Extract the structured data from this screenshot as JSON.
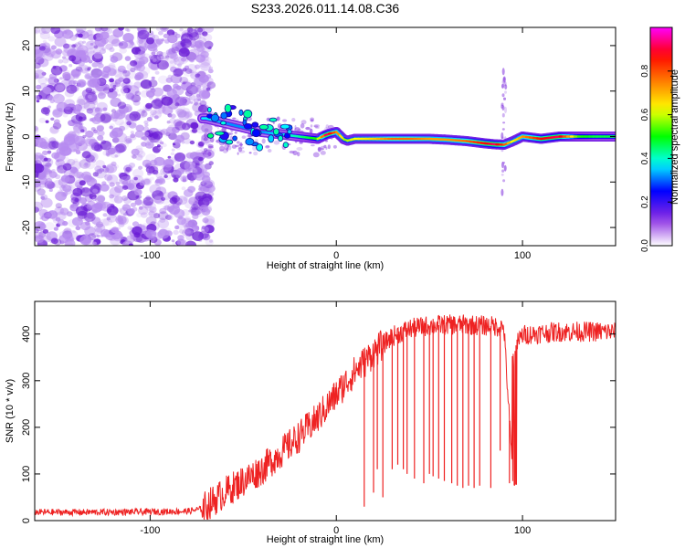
{
  "title": "S233.2026.011.14.08.C36",
  "chart_data": [
    {
      "type": "heatmap",
      "id": "spectrogram",
      "xlabel": "Height of straight line (km)",
      "ylabel": "Frequency (Hz)",
      "xlim": [
        -162,
        150
      ],
      "ylim": [
        -24,
        24
      ],
      "xticks": [
        -100,
        0,
        100
      ],
      "xtick_labels": [
        "-100",
        "0",
        "100"
      ],
      "yticks": [
        -20,
        -10,
        0,
        10,
        20
      ],
      "ytick_labels": [
        "-20",
        "-10",
        "0",
        "10",
        "20"
      ],
      "colorbar": {
        "label": "Normalized spectral amplitude",
        "range": [
          0,
          1
        ],
        "ticks": [
          0.0,
          0.2,
          0.4,
          0.6,
          0.8
        ],
        "tick_labels": [
          "0.0",
          "0.2",
          "0.4",
          "0.6",
          "0.8"
        ],
        "colormap": [
          "#ffffff",
          "#8a2be2",
          "#0000ff",
          "#00ffff",
          "#00ff00",
          "#ffff00",
          "#ff8000",
          "#ff0000",
          "#ff00ff"
        ]
      },
      "noise_region_x": [
        -162,
        -72
      ],
      "signal_trace": {
        "x": [
          -70,
          -60,
          -50,
          -40,
          -30,
          -20,
          -10,
          -5,
          0,
          5,
          10,
          20,
          30,
          40,
          50,
          60,
          70,
          80,
          85,
          90,
          95,
          100,
          110,
          120,
          130,
          140,
          150
        ],
        "freq": [
          4,
          3,
          2,
          1,
          0.5,
          0,
          -0.5,
          0.5,
          1,
          -1,
          -0.5,
          -0.5,
          -0.5,
          -0.5,
          -0.5,
          -0.7,
          -1,
          -1.5,
          -1.7,
          -1.8,
          -1,
          0,
          -0.5,
          0,
          0,
          0,
          0
        ],
        "amplitude": [
          0.35,
          0.3,
          0.3,
          0.3,
          0.35,
          0.4,
          0.5,
          0.9,
          0.75,
          0.55,
          0.6,
          0.65,
          0.75,
          0.75,
          0.7,
          0.7,
          0.75,
          0.85,
          0.9,
          0.8,
          0.6,
          0.7,
          0.85,
          0.9,
          0.5,
          0.45,
          0.45
        ]
      }
    },
    {
      "type": "line",
      "id": "snr",
      "xlabel": "Height of straight line (km)",
      "ylabel": "SNR (10 * v/v)",
      "xlim": [
        -162,
        150
      ],
      "ylim": [
        0,
        470
      ],
      "xticks": [
        -100,
        0,
        100
      ],
      "xtick_labels": [
        "-100",
        "0",
        "100"
      ],
      "yticks": [
        0,
        100,
        200,
        300,
        400
      ],
      "ytick_labels": [
        "0",
        "100",
        "200",
        "300",
        "400"
      ],
      "color": "#ee2222",
      "envelope": {
        "x": [
          -162,
          -120,
          -80,
          -72,
          -60,
          -50,
          -40,
          -30,
          -20,
          -10,
          0,
          10,
          20,
          30,
          40,
          50,
          60,
          70,
          80,
          90,
          95,
          97,
          100,
          110,
          120,
          130,
          140,
          150
        ],
        "y": [
          18,
          18,
          20,
          25,
          60,
          85,
          110,
          145,
          180,
          220,
          270,
          320,
          360,
          395,
          412,
          418,
          420,
          420,
          418,
          415,
          80,
          380,
          398,
          402,
          405,
          405,
          405,
          405
        ]
      },
      "dropouts": {
        "x": [
          15,
          20,
          22,
          25,
          30,
          33,
          36,
          38,
          42,
          47,
          50,
          52,
          55,
          58,
          62,
          65,
          68,
          71,
          74,
          77,
          83,
          88,
          93
        ],
        "y": [
          30,
          60,
          110,
          50,
          110,
          120,
          110,
          100,
          90,
          80,
          100,
          95,
          90,
          85,
          80,
          75,
          70,
          75,
          70,
          75,
          70,
          150,
          80
        ]
      },
      "noise_amplitude": 8
    }
  ]
}
